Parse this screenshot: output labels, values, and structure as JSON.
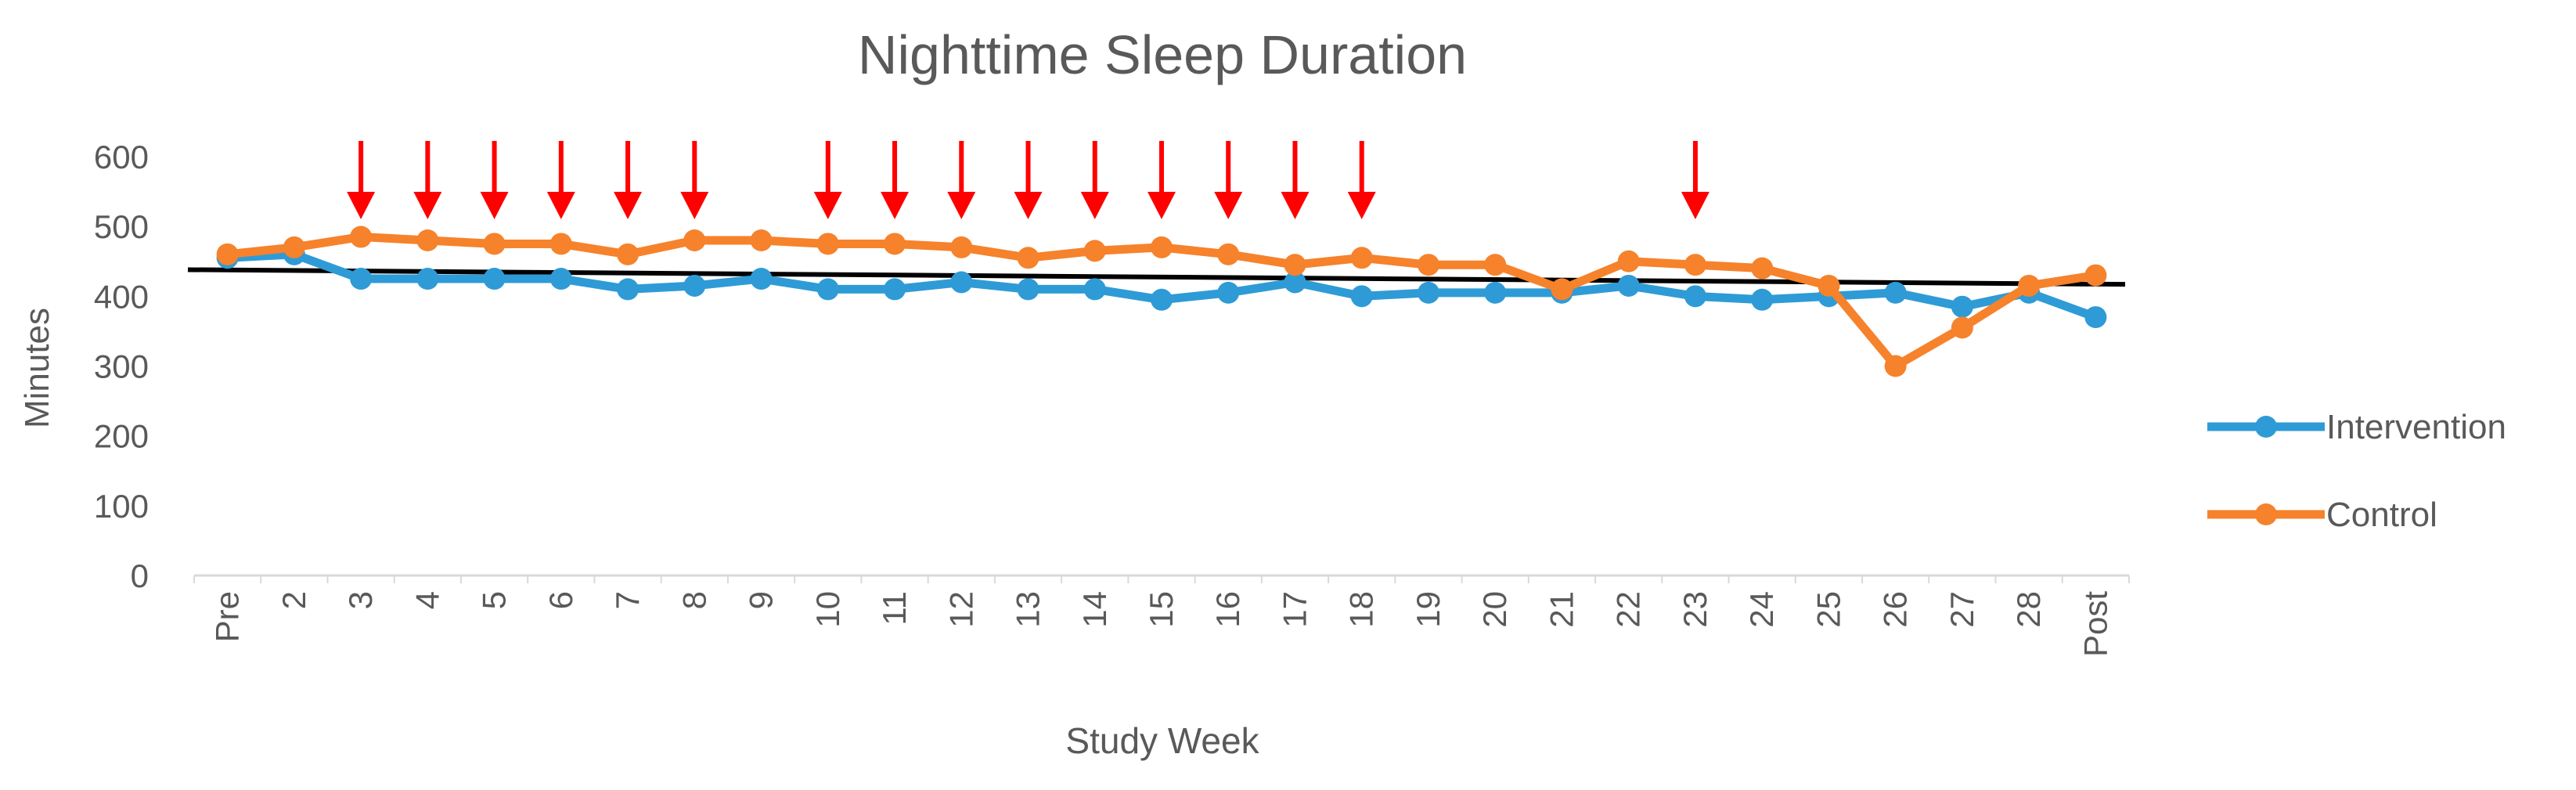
{
  "chart_data": {
    "type": "line",
    "title": "Nighttime Sleep Duration",
    "xlabel": "Study Week",
    "ylabel": "Minutes",
    "categories": [
      "Pre",
      "2",
      "3",
      "4",
      "5",
      "6",
      "7",
      "8",
      "9",
      "10",
      "11",
      "12",
      "13",
      "14",
      "15",
      "16",
      "17",
      "18",
      "19",
      "20",
      "21",
      "22",
      "23",
      "24",
      "25",
      "26",
      "27",
      "28",
      "Post"
    ],
    "ylim": [
      0,
      600
    ],
    "yticks": [
      0,
      100,
      200,
      300,
      400,
      500,
      600
    ],
    "grid": false,
    "legend_position": "right",
    "series": [
      {
        "name": "Intervention",
        "color": "#2e9bd6",
        "values": [
          455,
          460,
          425,
          425,
          425,
          425,
          410,
          415,
          425,
          410,
          410,
          420,
          410,
          410,
          395,
          405,
          420,
          400,
          405,
          405,
          405,
          415,
          400,
          395,
          400,
          405,
          385,
          405,
          370
        ]
      },
      {
        "name": "Control",
        "color": "#f6822b",
        "values": [
          460,
          470,
          485,
          480,
          475,
          475,
          460,
          480,
          480,
          475,
          475,
          470,
          455,
          465,
          470,
          460,
          445,
          455,
          445,
          445,
          410,
          450,
          445,
          440,
          415,
          300,
          355,
          415,
          430
        ]
      }
    ],
    "trend_line": {
      "color": "#000000",
      "start_value": 438,
      "end_value": 417
    },
    "annotations": {
      "arrow_color": "#ff0000",
      "arrow_categories": [
        "3",
        "4",
        "5",
        "6",
        "7",
        "8",
        "10",
        "11",
        "12",
        "13",
        "14",
        "15",
        "16",
        "17",
        "18",
        "23"
      ]
    }
  }
}
